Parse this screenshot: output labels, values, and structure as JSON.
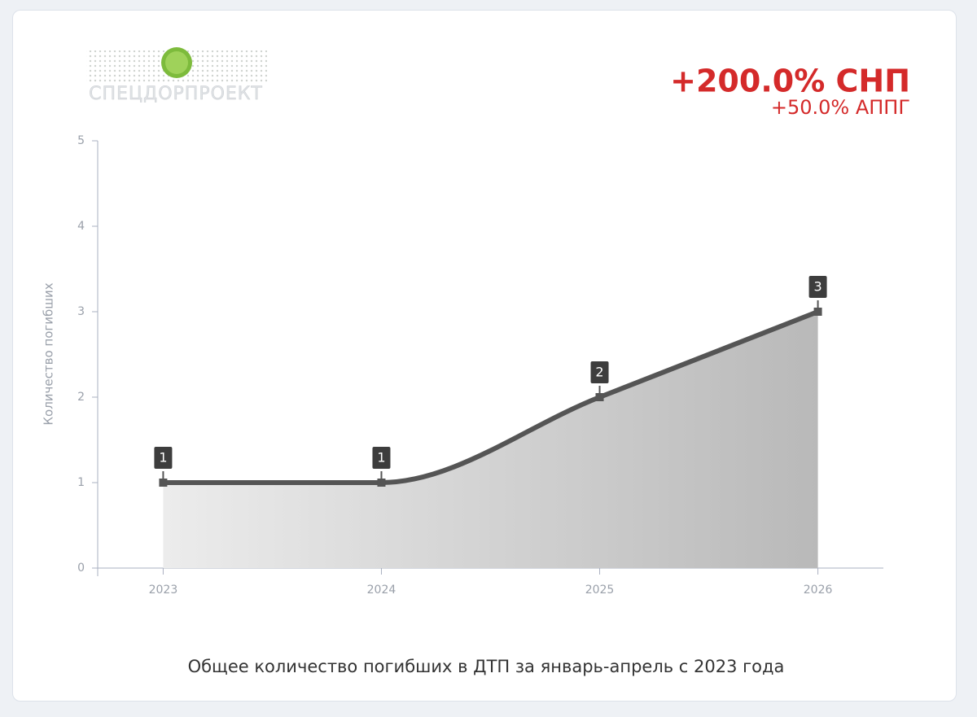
{
  "logo": {
    "text": "СПЕЦДОРПРОЕКТ"
  },
  "chart_data": {
    "type": "area",
    "title": "Общее количество погибших в ДТП за январь-апрель с 2023 года",
    "annotations": [
      "+200.0% СНП",
      "+50.0% АППГ"
    ],
    "y_label": "Количество погибших",
    "x": [
      2023,
      2024,
      2025,
      2026
    ],
    "series": [
      {
        "color": "#555555",
        "values": [
          1,
          1,
          2,
          3
        ]
      }
    ],
    "xlim": [
      2022.7,
      2026.3
    ],
    "xticks": [
      2023,
      2024,
      2025,
      2026
    ],
    "ylim": [
      0,
      5
    ],
    "yticks": [
      0,
      1,
      2,
      3,
      4,
      5
    ],
    "grid": false
  }
}
